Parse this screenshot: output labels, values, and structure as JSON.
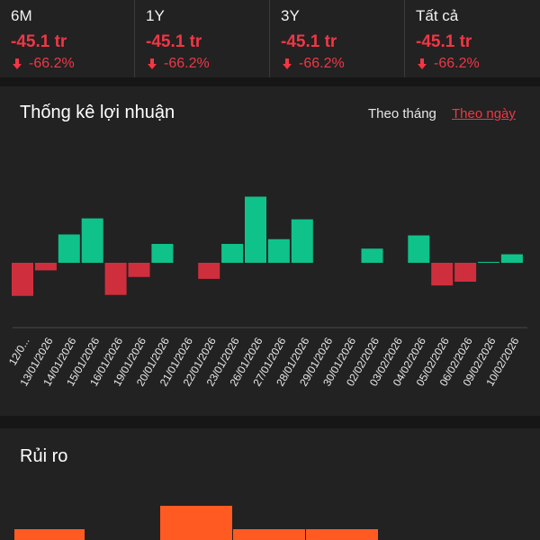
{
  "periods": [
    {
      "label": "6M",
      "value": "-45.1 tr",
      "pct": "-66.2%"
    },
    {
      "label": "1Y",
      "value": "-45.1 tr",
      "pct": "-66.2%"
    },
    {
      "label": "3Y",
      "value": "-45.1 tr",
      "pct": "-66.2%"
    },
    {
      "label": "Tất cả",
      "value": "-45.1 tr",
      "pct": "-66.2%"
    }
  ],
  "profit": {
    "title": "Thống kê lợi nhuận",
    "toggle_month": "Theo tháng",
    "toggle_day": "Theo ngày"
  },
  "risk": {
    "title": "Rủi ro"
  },
  "colors": {
    "gain": "#0fc28a",
    "loss": "#cf2f3d",
    "accent": "#f23645",
    "risk": "#ff5a22"
  },
  "chart_data": {
    "type": "bar",
    "categories": [
      "12/0...",
      "13/01/2026",
      "14/01/2026",
      "15/01/2026",
      "16/01/2026",
      "19/01/2026",
      "20/01/2026",
      "21/01/2026",
      "22/01/2026",
      "23/01/2026",
      "26/01/2026",
      "27/01/2026",
      "28/01/2026",
      "29/01/2026",
      "30/01/2026",
      "02/02/2026",
      "03/02/2026",
      "04/02/2026",
      "05/02/2026",
      "06/02/2026",
      "09/02/2026",
      "10/02/2026"
    ],
    "values": [
      -35,
      -8,
      30,
      47,
      -34,
      -15,
      20,
      0,
      -17,
      20,
      70,
      25,
      46,
      0,
      0,
      15,
      0,
      29,
      -24,
      -20,
      1,
      9
    ],
    "title": "Thống kê lợi nhuận",
    "xlabel": "",
    "ylabel": "",
    "grid": false
  },
  "risk_chart": {
    "type": "bar",
    "values": [
      12,
      38,
      12,
      12
    ]
  }
}
